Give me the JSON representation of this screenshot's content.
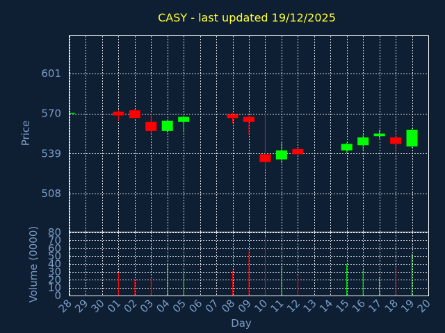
{
  "chart_data": {
    "type": "candlestick",
    "title": "CASY - last updated 19/12/2025",
    "xlabel": "Day",
    "price_ylabel": "Price",
    "volume_ylabel": "Volume (0000)",
    "x_ticks": [
      "28",
      "29",
      "30",
      "01",
      "02",
      "03",
      "04",
      "05",
      "06",
      "07",
      "08",
      "09",
      "10",
      "11",
      "12",
      "13",
      "14",
      "15",
      "16",
      "17",
      "18",
      "19",
      "20"
    ],
    "price_ticks": [
      508,
      539,
      570,
      601
    ],
    "price_ylim": [
      478.5,
      630
    ],
    "volume_ticks": [
      0,
      10,
      20,
      30,
      40,
      50,
      60,
      70,
      80
    ],
    "volume_ylim": [
      0,
      80
    ],
    "up_color": "#00ff00",
    "down_color": "#ff0000",
    "candles": [
      {
        "x": 0,
        "open": 570.5,
        "high": 570.5,
        "low": 570.5,
        "close": 570.5,
        "volume": 0
      },
      {
        "x": 3,
        "open": 571.5,
        "high": 572.5,
        "low": 564.5,
        "close": 568.5,
        "volume": 29
      },
      {
        "x": 4,
        "open": 572.5,
        "high": 573.5,
        "low": 566.5,
        "close": 566.5,
        "volume": 21
      },
      {
        "x": 5,
        "open": 563.5,
        "high": 569.5,
        "low": 554.5,
        "close": 556.5,
        "volume": 23
      },
      {
        "x": 6,
        "open": 556.5,
        "high": 564.5,
        "low": 555.5,
        "close": 564.5,
        "volume": 39
      },
      {
        "x": 7,
        "open": 563.5,
        "high": 568.5,
        "low": 555.5,
        "close": 567.5,
        "volume": 30
      },
      {
        "x": 10,
        "open": 569.5,
        "high": 570.5,
        "low": 562.5,
        "close": 566.5,
        "volume": 31
      },
      {
        "x": 11,
        "open": 567.5,
        "high": 568.5,
        "low": 553.5,
        "close": 563.5,
        "volume": 56
      },
      {
        "x": 12,
        "open": 538.5,
        "high": 570.5,
        "low": 526.5,
        "close": 532.5,
        "volume": 75
      },
      {
        "x": 13,
        "open": 534.5,
        "high": 547.5,
        "low": 531.5,
        "close": 541.5,
        "volume": 37
      },
      {
        "x": 14,
        "open": 542.5,
        "high": 542.5,
        "low": 537.5,
        "close": 538.5,
        "volume": 25
      },
      {
        "x": 17,
        "open": 541.5,
        "high": 547.5,
        "low": 539.5,
        "close": 546.5,
        "volume": 40
      },
      {
        "x": 18,
        "open": 545.5,
        "high": 553.5,
        "low": 541.5,
        "close": 551.5,
        "volume": 32
      },
      {
        "x": 19,
        "open": 552.5,
        "high": 557.5,
        "low": 550.5,
        "close": 554.5,
        "volume": 23
      },
      {
        "x": 20,
        "open": 551.5,
        "high": 555.5,
        "low": 539.5,
        "close": 546.5,
        "volume": 36
      },
      {
        "x": 21,
        "open": 544.5,
        "high": 558.5,
        "low": 543.5,
        "close": 557.5,
        "volume": 53
      }
    ]
  }
}
